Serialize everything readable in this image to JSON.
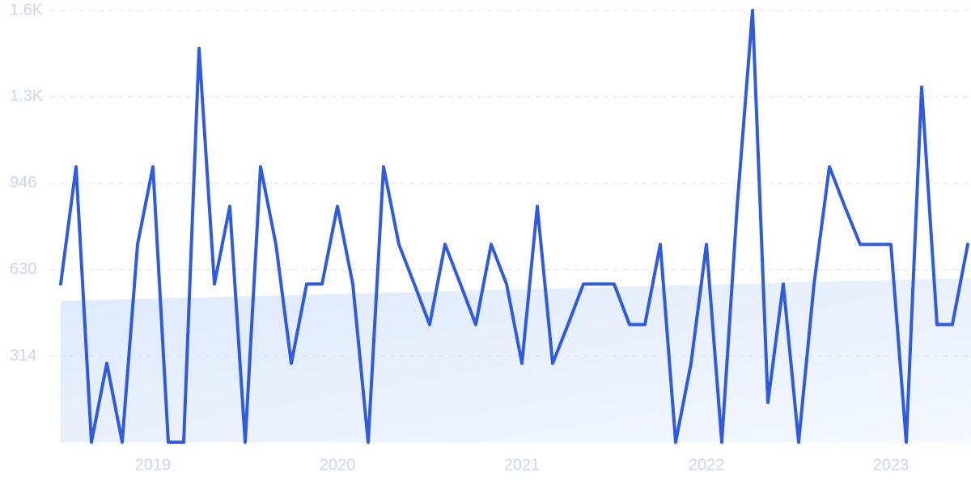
{
  "chart_data": {
    "type": "line",
    "color": "#2f5be0",
    "grid": true,
    "categories": [
      null,
      null,
      null,
      null,
      null,
      null,
      "2019",
      null,
      null,
      null,
      null,
      null,
      null,
      null,
      null,
      null,
      null,
      null,
      "2020",
      null,
      null,
      null,
      null,
      null,
      null,
      null,
      null,
      null,
      null,
      null,
      "2021",
      null,
      null,
      null,
      null,
      null,
      null,
      null,
      null,
      null,
      null,
      null,
      "2022",
      null,
      null,
      null,
      null,
      null,
      null,
      null,
      null,
      null,
      null,
      null,
      "2023",
      null,
      null,
      null,
      null,
      null
    ],
    "values": [
      578,
      1007,
      0,
      288,
      0,
      723,
      1007,
      0,
      0,
      1440,
      578,
      862,
      0,
      1007,
      723,
      288,
      578,
      578,
      862,
      578,
      0,
      1007,
      723,
      578,
      430,
      723,
      578,
      430,
      723,
      578,
      288,
      862,
      288,
      430,
      578,
      578,
      578,
      430,
      430,
      723,
      0,
      288,
      723,
      0,
      862,
      1578,
      145,
      578,
      0,
      578,
      1007,
      862,
      723,
      723,
      723,
      0,
      1298,
      430,
      430,
      723
    ],
    "trend": [
      516,
      600
    ],
    "ylim": [
      0,
      1578
    ],
    "yticks": [
      314,
      630,
      946,
      {
        "value": 1262,
        "label": "1.3K"
      },
      {
        "value": 1578,
        "label": "1.6K"
      }
    ]
  }
}
